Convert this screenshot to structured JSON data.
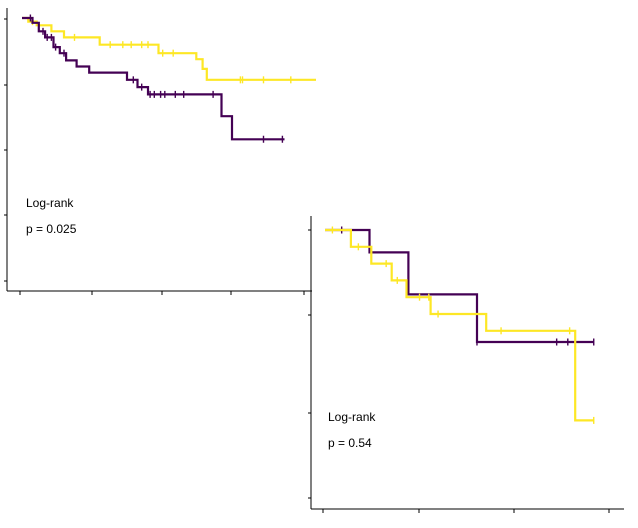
{
  "chart_data": [
    {
      "type": "line",
      "title": "",
      "xlabel": "",
      "ylabel": "",
      "xlim": [
        0,
        14
      ],
      "ylim": [
        0.2,
        1.0
      ],
      "grid": false,
      "annotation": {
        "line1": "Log-rank",
        "line2": "p = 0.025"
      },
      "series": [
        {
          "color": "#fde725",
          "steps": [
            [
              0,
              1.0
            ],
            [
              0.3,
              0.985
            ],
            [
              0.7,
              0.97
            ],
            [
              1.4,
              0.945
            ],
            [
              2.0,
              0.92
            ],
            [
              3.7,
              0.89
            ],
            [
              6.5,
              0.855
            ],
            [
              8.3,
              0.83
            ],
            [
              8.6,
              0.79
            ],
            [
              8.8,
              0.745
            ],
            [
              14.0,
              0.745
            ]
          ],
          "censor_x": [
            0.5,
            2.5,
            4.2,
            4.8,
            5.2,
            5.7,
            6.0,
            6.7,
            7.2,
            10.4,
            10.5,
            11.5,
            12.8
          ]
        },
        {
          "color": "#440154",
          "steps": [
            [
              0,
              1.0
            ],
            [
              0.5,
              0.98
            ],
            [
              0.8,
              0.945
            ],
            [
              1.1,
              0.92
            ],
            [
              1.5,
              0.88
            ],
            [
              1.8,
              0.855
            ],
            [
              2.1,
              0.825
            ],
            [
              2.6,
              0.8
            ],
            [
              3.2,
              0.775
            ],
            [
              5.0,
              0.745
            ],
            [
              5.5,
              0.715
            ],
            [
              6.0,
              0.685
            ],
            [
              9.5,
              0.595
            ],
            [
              10.0,
              0.5
            ],
            [
              12.5,
              0.5
            ]
          ],
          "censor_x": [
            0.4,
            1.0,
            1.2,
            1.4,
            1.6,
            2.0,
            5.3,
            5.7,
            6.1,
            6.3,
            6.6,
            6.8,
            7.3,
            7.7,
            9.1,
            11.5,
            12.4
          ]
        }
      ]
    },
    {
      "type": "line",
      "title": "",
      "xlabel": "",
      "ylabel": "",
      "xlim": [
        0,
        15
      ],
      "ylim": [
        0.0,
        1.0
      ],
      "grid": false,
      "annotation": {
        "line1": "Log-rank",
        "line2": "p = 0.54"
      },
      "series": [
        {
          "color": "#440154",
          "steps": [
            [
              0,
              1.0
            ],
            [
              2.4,
              0.92
            ],
            [
              4.5,
              0.77
            ],
            [
              8.2,
              0.6
            ],
            [
              14.5,
              0.6
            ]
          ],
          "censor_x": [
            0.9,
            8.2,
            12.5,
            13.1,
            14.5
          ]
        },
        {
          "color": "#fde725",
          "steps": [
            [
              0,
              1.0
            ],
            [
              1.4,
              0.94
            ],
            [
              2.5,
              0.88
            ],
            [
              3.6,
              0.82
            ],
            [
              4.4,
              0.76
            ],
            [
              5.7,
              0.7
            ],
            [
              8.7,
              0.64
            ],
            [
              13.5,
              0.32
            ],
            [
              14.5,
              0.32
            ]
          ],
          "censor_x": [
            0.4,
            1.8,
            3.3,
            3.9,
            5.1,
            5.6,
            6.1,
            9.5,
            13.2,
            14.5
          ]
        }
      ]
    }
  ]
}
